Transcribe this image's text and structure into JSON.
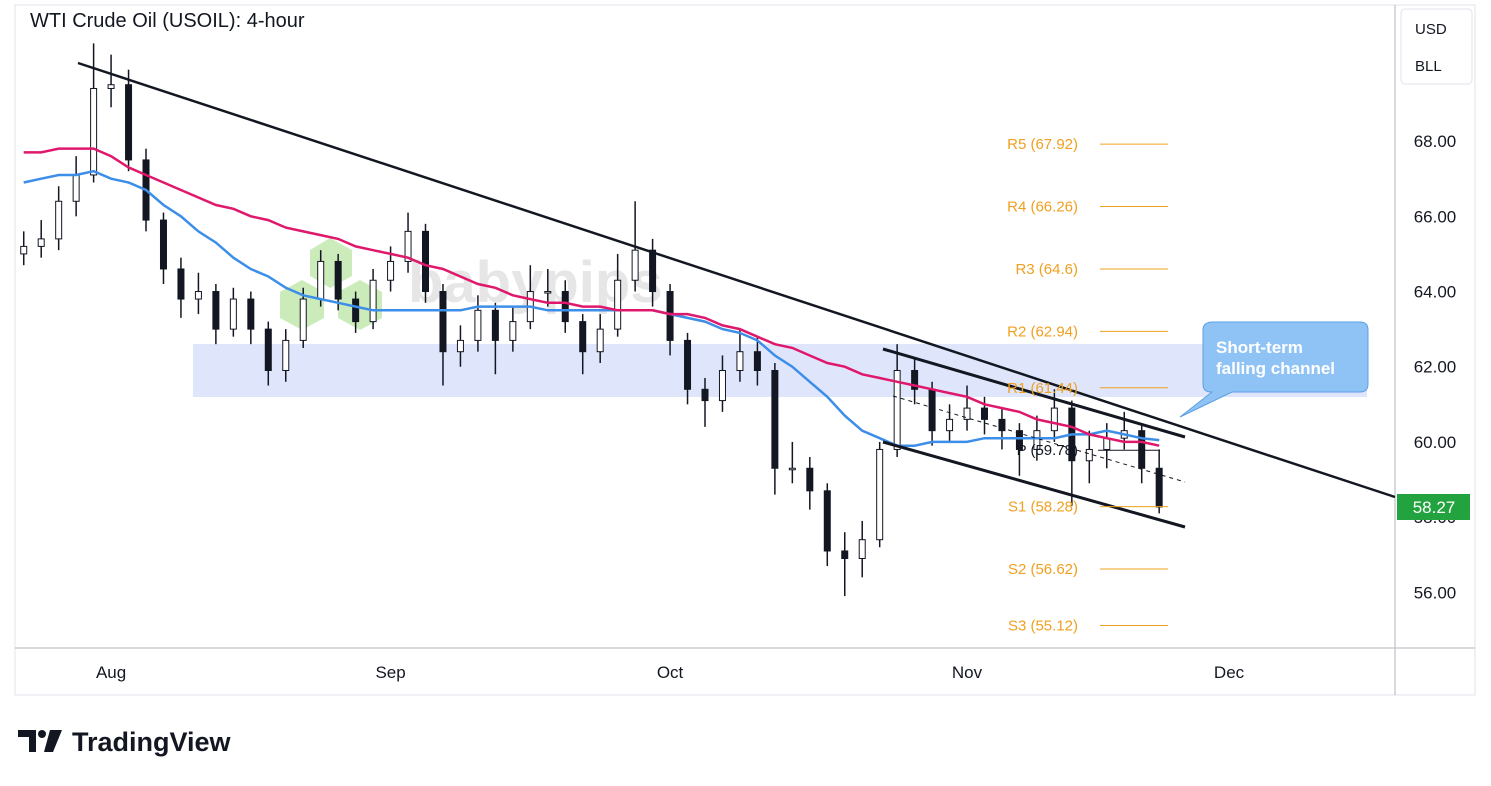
{
  "chart_data": {
    "type": "candlestick",
    "title": "WTI Crude Oil (USOIL): 4-hour",
    "currency": "USD",
    "unit": "BLL",
    "watermark": "babypips",
    "brand": "TradingView",
    "callout": [
      "Short-term",
      "falling channel"
    ],
    "categories": [
      null,
      null,
      null,
      null,
      null,
      "Aug",
      null,
      null,
      null,
      null,
      null,
      null,
      null,
      null,
      null,
      null,
      null,
      null,
      null,
      null,
      null,
      "Sep",
      null,
      null,
      null,
      null,
      null,
      null,
      null,
      null,
      null,
      null,
      null,
      null,
      null,
      null,
      null,
      "Oct",
      null,
      null,
      null,
      null,
      null,
      null,
      null,
      null,
      null,
      null,
      null,
      null,
      null,
      null,
      null,
      null,
      "Nov",
      null,
      null,
      null,
      null,
      null,
      null,
      null,
      null,
      null,
      null,
      null,
      null,
      null,
      null,
      "Dec",
      null,
      null,
      null,
      null,
      null,
      null,
      null,
      null,
      null
    ],
    "candle_color": "#131722",
    "candles": [
      [
        65.0,
        65.6,
        64.7,
        65.2
      ],
      [
        65.2,
        65.9,
        64.9,
        65.4
      ],
      [
        65.4,
        66.8,
        65.1,
        66.4
      ],
      [
        66.4,
        67.6,
        66.0,
        67.1
      ],
      [
        67.1,
        70.6,
        66.9,
        69.4
      ],
      [
        69.4,
        70.3,
        68.9,
        69.5
      ],
      [
        69.5,
        69.9,
        67.2,
        67.5
      ],
      [
        67.5,
        67.8,
        65.6,
        65.9
      ],
      [
        65.9,
        66.1,
        64.2,
        64.6
      ],
      [
        64.6,
        64.9,
        63.3,
        63.8
      ],
      [
        63.8,
        64.5,
        63.4,
        64.0
      ],
      [
        64.0,
        64.2,
        62.6,
        63.0
      ],
      [
        63.0,
        64.1,
        62.8,
        63.8
      ],
      [
        63.8,
        64.0,
        62.6,
        63.0
      ],
      [
        63.0,
        63.2,
        61.5,
        61.9
      ],
      [
        61.9,
        63.0,
        61.6,
        62.7
      ],
      [
        62.7,
        64.1,
        62.5,
        63.8
      ],
      [
        63.8,
        65.1,
        63.6,
        64.8
      ],
      [
        64.8,
        65.0,
        63.5,
        63.8
      ],
      [
        63.8,
        64.0,
        62.9,
        63.2
      ],
      [
        63.2,
        64.6,
        63.0,
        64.3
      ],
      [
        64.3,
        65.2,
        64.0,
        64.8
      ],
      [
        64.8,
        66.1,
        64.5,
        65.6
      ],
      [
        65.6,
        65.8,
        63.7,
        64.0
      ],
      [
        64.0,
        64.2,
        61.5,
        62.4
      ],
      [
        62.4,
        63.1,
        62.0,
        62.7
      ],
      [
        62.7,
        63.9,
        62.4,
        63.5
      ],
      [
        63.5,
        63.7,
        61.8,
        62.7
      ],
      [
        62.7,
        63.6,
        62.4,
        63.2
      ],
      [
        63.2,
        64.7,
        63.0,
        64.0
      ],
      [
        64.0,
        64.6,
        63.6,
        64.0
      ],
      [
        64.0,
        64.3,
        62.9,
        63.2
      ],
      [
        63.2,
        63.4,
        61.8,
        62.4
      ],
      [
        62.4,
        63.4,
        62.1,
        63.0
      ],
      [
        63.0,
        65.0,
        62.8,
        64.3
      ],
      [
        64.3,
        66.4,
        64.0,
        65.1
      ],
      [
        65.1,
        65.4,
        63.6,
        64.0
      ],
      [
        64.0,
        64.2,
        62.3,
        62.7
      ],
      [
        62.7,
        62.9,
        61.0,
        61.4
      ],
      [
        61.4,
        61.7,
        60.4,
        61.1
      ],
      [
        61.1,
        62.3,
        60.8,
        61.9
      ],
      [
        61.9,
        63.0,
        61.6,
        62.4
      ],
      [
        62.4,
        62.8,
        61.5,
        61.9
      ],
      [
        61.9,
        62.1,
        58.6,
        59.3
      ],
      [
        59.3,
        60.0,
        58.9,
        59.3
      ],
      [
        59.3,
        59.6,
        58.2,
        58.7
      ],
      [
        58.7,
        58.9,
        56.7,
        57.1
      ],
      [
        57.1,
        57.6,
        55.9,
        56.9
      ],
      [
        56.9,
        57.9,
        56.4,
        57.4
      ],
      [
        57.4,
        60.0,
        57.2,
        59.8
      ],
      [
        59.8,
        62.6,
        59.6,
        61.9
      ],
      [
        61.9,
        62.2,
        61.0,
        61.4
      ],
      [
        61.4,
        61.6,
        59.9,
        60.3
      ],
      [
        60.3,
        61.0,
        60.0,
        60.6
      ],
      [
        60.6,
        61.5,
        60.3,
        60.9
      ],
      [
        60.9,
        61.2,
        60.2,
        60.6
      ],
      [
        60.6,
        60.9,
        59.8,
        60.3
      ],
      [
        60.3,
        60.5,
        59.1,
        59.8
      ],
      [
        59.8,
        60.7,
        59.5,
        60.3
      ],
      [
        60.3,
        61.4,
        60.0,
        60.9
      ],
      [
        60.9,
        61.1,
        58.3,
        59.5
      ],
      [
        59.5,
        60.3,
        58.9,
        59.8
      ],
      [
        59.8,
        60.5,
        59.3,
        60.1
      ],
      [
        60.1,
        60.8,
        59.8,
        60.3
      ],
      [
        60.3,
        60.5,
        58.9,
        59.3
      ],
      [
        59.3,
        59.8,
        58.1,
        58.27
      ],
      null,
      null,
      null,
      null,
      null,
      null,
      null,
      null,
      null,
      null,
      null,
      null,
      null
    ],
    "series": [
      {
        "color": "#3d8ee8",
        "values": [
          66.9,
          67.0,
          67.1,
          67.1,
          67.2,
          67.0,
          66.9,
          66.7,
          66.3,
          66.0,
          65.6,
          65.3,
          64.9,
          64.6,
          64.4,
          64.1,
          63.9,
          63.8,
          63.7,
          63.6,
          63.5,
          63.5,
          63.5,
          63.5,
          63.5,
          63.5,
          63.6,
          63.6,
          63.6,
          63.6,
          63.5,
          63.5,
          63.5,
          63.5,
          63.5,
          63.5,
          63.5,
          63.4,
          63.3,
          63.2,
          63.0,
          62.9,
          62.7,
          62.3,
          62.0,
          61.6,
          61.2,
          60.7,
          60.3,
          60.1,
          59.9,
          59.9,
          60.0,
          60.0,
          60.0,
          60.1,
          60.1,
          60.1,
          60.1,
          60.1,
          60.2,
          60.2,
          60.3,
          60.2,
          60.1,
          60.05,
          null,
          null,
          null,
          null,
          null,
          null,
          null,
          null,
          null,
          null,
          null,
          null,
          null
        ]
      },
      {
        "color": "#e0186c",
        "values": [
          67.7,
          67.7,
          67.8,
          67.8,
          67.8,
          67.6,
          67.3,
          67.1,
          66.9,
          66.7,
          66.5,
          66.3,
          66.2,
          66.0,
          65.9,
          65.7,
          65.6,
          65.5,
          65.4,
          65.2,
          65.1,
          65.0,
          64.9,
          64.7,
          64.6,
          64.4,
          64.2,
          64.1,
          63.9,
          63.8,
          63.7,
          63.7,
          63.6,
          63.6,
          63.5,
          63.5,
          63.5,
          63.4,
          63.4,
          63.3,
          63.1,
          63.0,
          62.8,
          62.6,
          62.5,
          62.3,
          62.1,
          62.0,
          61.8,
          61.7,
          61.6,
          61.5,
          61.4,
          61.3,
          61.2,
          61.0,
          60.9,
          60.8,
          60.6,
          60.5,
          60.4,
          60.2,
          60.1,
          60.0,
          60.0,
          59.9,
          null,
          null,
          null,
          null,
          null,
          null,
          null,
          null,
          null,
          null,
          null,
          null,
          null
        ]
      }
    ],
    "pivot_color": "#f0a020",
    "pivots": [
      {
        "value": 67.92,
        "label": "R5 (67.92)"
      },
      {
        "value": 66.26,
        "label": "R4 (66.26)"
      },
      {
        "value": 64.6,
        "label": "R3 (64.6)"
      },
      {
        "value": 62.94,
        "label": "R2 (62.94)"
      },
      {
        "value": 61.44,
        "label": "R1 (61.44)"
      },
      {
        "value": 59.78,
        "label": "P (59.78)"
      },
      {
        "value": 58.28,
        "label": "S1 (58.28)"
      },
      {
        "value": 56.62,
        "label": "S2 (56.62)"
      },
      {
        "value": 55.12,
        "label": "S3 (55.12)"
      }
    ],
    "last_price_color": "#22a33f",
    "ylim": [
      54.52,
      71.62
    ],
    "yticks": [
      {
        "value": 56,
        "label": "56.00"
      },
      {
        "value": 58,
        "label": "58.00"
      },
      {
        "value": 60,
        "label": "60.00"
      },
      {
        "value": 62,
        "label": "62.00"
      },
      {
        "value": 64,
        "label": "64.00"
      },
      {
        "value": 66,
        "label": "66.00"
      },
      {
        "value": 68,
        "label": "68.00"
      }
    ]
  }
}
